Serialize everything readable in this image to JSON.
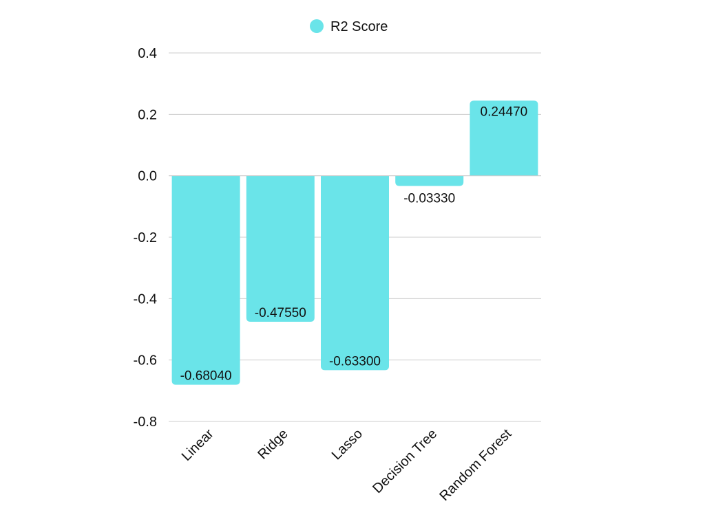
{
  "chart_data": {
    "type": "bar",
    "categories": [
      "Linear",
      "Ridge",
      "Lasso",
      "Decision Tree",
      "Random Forest"
    ],
    "series": [
      {
        "name": "R2 Score",
        "values": [
          -0.6804,
          -0.4755,
          -0.633,
          -0.0333,
          0.2447
        ],
        "data_labels": [
          "-0.68040",
          "-0.47550",
          "-0.63300",
          "-0.03330",
          "0.24470"
        ],
        "color": "#6ae4e9"
      }
    ],
    "ylim": [
      -0.8,
      0.4
    ],
    "yticks": [
      0.4,
      0.2,
      0.0,
      -0.2,
      -0.4,
      -0.6,
      -0.8
    ],
    "ytick_labels": [
      "0.4",
      "0.2",
      "0.0",
      "-0.2",
      "-0.4",
      "-0.6",
      "-0.8"
    ],
    "grid": true,
    "legend": {
      "position": "top-center",
      "label": "R2 Score"
    },
    "gridline_color": "#cccccc"
  }
}
